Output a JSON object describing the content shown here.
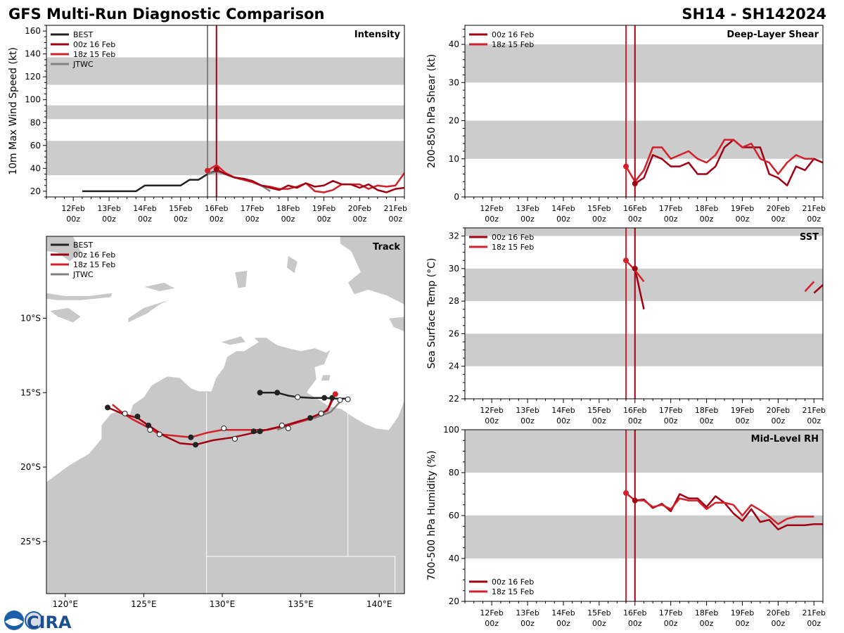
{
  "header": {
    "title_left": "GFS Multi-Run Diagnostic Comparison",
    "title_right": "SH14 - SH142024"
  },
  "time_ticks": [
    {
      "l1": "12Feb",
      "l2": "00z",
      "h": 0
    },
    {
      "l1": "13Feb",
      "l2": "00z",
      "h": 24
    },
    {
      "l1": "14Feb",
      "l2": "00z",
      "h": 48
    },
    {
      "l1": "15Feb",
      "l2": "00z",
      "h": 72
    },
    {
      "l1": "16Feb",
      "l2": "00z",
      "h": 96
    },
    {
      "l1": "17Feb",
      "l2": "00z",
      "h": 120
    },
    {
      "l1": "18Feb",
      "l2": "00z",
      "h": 144
    },
    {
      "l1": "19Feb",
      "l2": "00z",
      "h": 168
    },
    {
      "l1": "20Feb",
      "l2": "00z",
      "h": 192
    },
    {
      "l1": "21Feb",
      "l2": "00z",
      "h": 216
    }
  ],
  "colors": {
    "best": "#222222",
    "run00": "#a00012",
    "run18": "#d42028",
    "jtwc": "#808080",
    "band": "#cccccc",
    "land": "#c8c8c8"
  },
  "legend": {
    "best": "BEST",
    "run00": "00z 16 Feb",
    "run18": "18z 15 Feb",
    "jtwc": "JTWC"
  },
  "logo": {
    "text": "CIRA"
  },
  "chart_data": [
    {
      "id": "intensity",
      "type": "line",
      "title": "Intensity",
      "ylabel": "10m Max Wind Speed (kt)",
      "xlim_hours": [
        -18,
        222
      ],
      "ylim": [
        15,
        165
      ],
      "yticks": [
        20,
        40,
        60,
        80,
        100,
        120,
        140,
        160
      ],
      "yminor_step": 5,
      "bands": [
        [
          34,
          64
        ],
        [
          83,
          95
        ],
        [
          113,
          137
        ]
      ],
      "vlines": [
        {
          "hour": 90,
          "color": "jtwc"
        },
        {
          "hour": 96,
          "color": "run00"
        }
      ],
      "series": [
        {
          "name": "BEST",
          "color": "best",
          "x": [
            6,
            12,
            18,
            24,
            30,
            36,
            42,
            48,
            54,
            60,
            66,
            72,
            78,
            84,
            90,
            96
          ],
          "y": [
            20,
            20,
            20,
            20,
            20,
            20,
            20,
            25,
            25,
            25,
            25,
            25,
            30,
            30,
            35,
            38
          ]
        },
        {
          "name": "JTWC",
          "color": "jtwc",
          "x": [
            90,
            96,
            102,
            108,
            114,
            120,
            126,
            132
          ],
          "y": [
            35,
            37,
            35,
            32,
            30,
            28,
            25,
            20
          ]
        },
        {
          "name": "18z 15 Feb",
          "color": "run18",
          "x": [
            90,
            96,
            102,
            108,
            114,
            120,
            126,
            132,
            138,
            144,
            150,
            156,
            162,
            168,
            174,
            180,
            186,
            192,
            198,
            204,
            210,
            216,
            222
          ],
          "y": [
            38,
            43,
            36,
            32,
            30,
            28,
            25,
            24,
            22,
            22,
            24,
            27,
            20,
            19,
            21,
            26,
            26,
            26,
            22,
            25,
            24,
            25,
            36
          ]
        },
        {
          "name": "00z 16 Feb",
          "color": "run00",
          "x": [
            96,
            102,
            108,
            114,
            120,
            126,
            132,
            138,
            144,
            150,
            156,
            162,
            168,
            174,
            180,
            186,
            192,
            198,
            204,
            210,
            216,
            222
          ],
          "y": [
            39,
            35,
            32,
            31,
            29,
            25,
            23,
            21,
            25,
            23,
            27,
            24,
            25,
            29,
            26,
            26,
            23,
            26,
            21,
            19,
            22,
            23
          ]
        }
      ],
      "markers": [
        {
          "x": 90,
          "y": 38,
          "color": "run18"
        },
        {
          "x": 96,
          "y": 39,
          "color": "run00"
        }
      ]
    },
    {
      "id": "shear",
      "type": "line",
      "title": "Deep-Layer Shear",
      "ylabel": "200-850 hPa Shear (kt)",
      "xlim_hours": [
        -18,
        222
      ],
      "ylim": [
        0,
        45
      ],
      "yticks": [
        0,
        10,
        20,
        30,
        40
      ],
      "yminor_step": 2,
      "bands": [
        [
          10,
          20
        ],
        [
          30,
          40
        ]
      ],
      "vlines": [
        {
          "hour": 90,
          "color": "run18"
        },
        {
          "hour": 96,
          "color": "run00"
        }
      ],
      "series": [
        {
          "name": "00z 16 Feb",
          "color": "run00",
          "x": [
            96,
            102,
            108,
            114,
            120,
            126,
            132,
            138,
            144,
            150,
            156,
            162,
            168,
            174,
            180,
            186,
            192,
            198,
            204,
            210,
            216,
            222
          ],
          "y": [
            3.5,
            5,
            11,
            10,
            8,
            8,
            9,
            6,
            6,
            8,
            13,
            15,
            13,
            13,
            13,
            6,
            5,
            3,
            8,
            7,
            10,
            9
          ]
        },
        {
          "name": "18z 15 Feb",
          "color": "run18",
          "x": [
            90,
            96,
            102,
            108,
            114,
            120,
            126,
            132,
            138,
            144,
            150,
            156,
            162,
            168,
            174,
            180,
            186,
            192,
            198,
            204,
            210,
            216
          ],
          "y": [
            8,
            4,
            7,
            13,
            13,
            10,
            11,
            12,
            10,
            9,
            11,
            15,
            15,
            13,
            14,
            10,
            9,
            6,
            9,
            11,
            10,
            10
          ]
        }
      ],
      "markers": [
        {
          "x": 90,
          "y": 8,
          "color": "run18"
        },
        {
          "x": 96,
          "y": 3.5,
          "color": "run00"
        }
      ]
    },
    {
      "id": "sst",
      "type": "line",
      "title": "SST",
      "ylabel": "Sea Surface Temp (°C)",
      "xlim_hours": [
        -18,
        222
      ],
      "ylim": [
        22,
        32.5
      ],
      "yticks": [
        22,
        24,
        26,
        28,
        30,
        32
      ],
      "yminor_step": 0.5,
      "bands": [
        [
          24,
          26
        ],
        [
          28,
          30
        ],
        [
          32,
          34
        ]
      ],
      "vlines": [
        {
          "hour": 90,
          "color": "run18"
        },
        {
          "hour": 96,
          "color": "run00"
        }
      ],
      "series": [
        {
          "name": "00z 16 Feb",
          "color": "run00",
          "x": [
            96,
            102
          ],
          "y": [
            30,
            27.5
          ]
        },
        {
          "name": "00z 16 Feb (late)",
          "color": "run00",
          "x": [
            216,
            222
          ],
          "y": [
            28.5,
            29
          ]
        },
        {
          "name": "18z 15 Feb",
          "color": "run18",
          "x": [
            90,
            96,
            102
          ],
          "y": [
            30.5,
            29.9,
            29.2
          ]
        },
        {
          "name": "18z 15 Feb (late)",
          "color": "run18",
          "x": [
            210,
            216
          ],
          "y": [
            28.6,
            29.2
          ]
        }
      ],
      "markers": [
        {
          "x": 90,
          "y": 30.5,
          "color": "run18"
        },
        {
          "x": 96,
          "y": 30,
          "color": "run00"
        }
      ]
    },
    {
      "id": "rh",
      "type": "line",
      "title": "Mid-Level RH",
      "ylabel": "700-500 hPa Humidity (%)",
      "xlim_hours": [
        -18,
        222
      ],
      "ylim": [
        20,
        100
      ],
      "yticks": [
        20,
        40,
        60,
        80,
        100
      ],
      "yminor_step": 5,
      "bands": [
        [
          40,
          60
        ],
        [
          80,
          100
        ]
      ],
      "vlines": [
        {
          "hour": 90,
          "color": "run18"
        },
        {
          "hour": 96,
          "color": "run00"
        }
      ],
      "series": [
        {
          "name": "00z 16 Feb",
          "color": "run00",
          "x": [
            96,
            102,
            108,
            114,
            120,
            126,
            132,
            138,
            144,
            150,
            156,
            162,
            168,
            174,
            180,
            186,
            192,
            198,
            204,
            210,
            216,
            222
          ],
          "y": [
            67,
            67.5,
            63.5,
            65.5,
            62,
            70,
            68,
            68,
            64,
            69,
            66,
            61,
            57.5,
            63,
            57,
            58,
            53.5,
            55.5,
            55.5,
            55.5,
            56,
            56
          ]
        },
        {
          "name": "18z 15 Feb",
          "color": "run18",
          "x": [
            90,
            96,
            102,
            108,
            114,
            120,
            126,
            132,
            138,
            144,
            150,
            156,
            162,
            168,
            174,
            180,
            186,
            192,
            198,
            204,
            210,
            216
          ],
          "y": [
            70.5,
            67,
            67,
            64,
            65,
            63,
            68,
            67,
            67,
            63,
            66,
            66,
            65,
            60,
            65,
            62.5,
            59.5,
            56,
            58.5,
            59.5,
            59.5,
            59.5
          ]
        }
      ],
      "markers": [
        {
          "x": 90,
          "y": 70.5,
          "color": "run18"
        },
        {
          "x": 96,
          "y": 67,
          "color": "run00"
        }
      ]
    },
    {
      "id": "track",
      "type": "scatter",
      "title": "Track",
      "xlim": [
        118.8,
        141.6
      ],
      "ylim": [
        -28.5,
        -4.5
      ],
      "xticks": [
        {
          "v": 120,
          "l": "120°E"
        },
        {
          "v": 125,
          "l": "125°E"
        },
        {
          "v": 130,
          "l": "130°E"
        },
        {
          "v": 135,
          "l": "135°E"
        },
        {
          "v": 140,
          "l": "140°E"
        }
      ],
      "yticks": [
        {
          "v": -10,
          "l": "10°S"
        },
        {
          "v": -15,
          "l": "15°S"
        },
        {
          "v": -20,
          "l": "20°S"
        },
        {
          "v": -25,
          "l": "25°S"
        }
      ],
      "series": [
        {
          "name": "BEST",
          "color": "best",
          "lon": [
            132.4,
            133.5,
            134.2,
            134.8,
            135.7,
            136.5,
            137.3,
            138.0,
            138.0
          ],
          "lat": [
            -15.0,
            -15.0,
            -15.2,
            -15.3,
            -15.35,
            -15.35,
            -15.4,
            -15.4,
            -15.6
          ]
        },
        {
          "name": "JTWC",
          "color": "jtwc",
          "lon": [
            137.6,
            136.9,
            135.9,
            134.5,
            133.5
          ],
          "lat": [
            -15.5,
            -16.3,
            -16.7,
            -17.1,
            -17.5
          ]
        },
        {
          "name": "18z 15 Feb",
          "color": "run18",
          "lon": [
            137.2,
            136.8,
            136.5,
            135.4,
            134.2,
            132.9,
            131.3,
            130.0,
            129.0,
            128.0,
            127.0,
            126.0,
            125.2,
            124.3,
            123.7,
            123.0
          ],
          "lat": [
            -15.1,
            -16.0,
            -16.3,
            -16.8,
            -17.2,
            -17.5,
            -17.5,
            -17.5,
            -17.7,
            -18.0,
            -17.9,
            -17.8,
            -17.3,
            -16.8,
            -16.4,
            -15.8
          ]
        },
        {
          "name": "00z 16 Feb",
          "color": "run00",
          "lon": [
            137.0,
            136.7,
            135.6,
            134.0,
            132.4,
            130.7,
            129.4,
            128.3,
            127.3,
            126.3,
            125.3,
            124.6,
            123.6,
            122.7
          ],
          "lat": [
            -15.4,
            -16.2,
            -16.7,
            -17.2,
            -17.6,
            -18.0,
            -18.2,
            -18.5,
            -18.4,
            -17.9,
            -17.2,
            -16.7,
            -16.4,
            -16.0
          ]
        }
      ],
      "points_filled": [
        {
          "lon": 132.4,
          "lat": -15.0,
          "c": "best"
        },
        {
          "lon": 133.5,
          "lat": -15.0,
          "c": "best"
        },
        {
          "lon": 136.5,
          "lat": -15.35,
          "c": "best"
        },
        {
          "lon": 137.0,
          "lat": -15.35,
          "c": "best"
        },
        {
          "lon": 137.2,
          "lat": -15.1,
          "c": "run18"
        },
        {
          "lon": 135.6,
          "lat": -16.7,
          "c": "best"
        },
        {
          "lon": 132.0,
          "lat": -17.6,
          "c": "best"
        },
        {
          "lon": 128.3,
          "lat": -18.5,
          "c": "best"
        },
        {
          "lon": 128.0,
          "lat": -18.0,
          "c": "best"
        },
        {
          "lon": 125.3,
          "lat": -17.2,
          "c": "best"
        },
        {
          "lon": 124.6,
          "lat": -16.6,
          "c": "best"
        },
        {
          "lon": 122.7,
          "lat": -16.0,
          "c": "best"
        },
        {
          "lon": 132.4,
          "lat": -17.6,
          "c": "best"
        }
      ],
      "points_open": [
        {
          "lon": 134.8,
          "lat": -15.3
        },
        {
          "lon": 138.0,
          "lat": -15.45
        },
        {
          "lon": 136.3,
          "lat": -16.4
        },
        {
          "lon": 133.8,
          "lat": -17.2
        },
        {
          "lon": 130.1,
          "lat": -17.4
        },
        {
          "lon": 134.2,
          "lat": -17.4
        },
        {
          "lon": 130.8,
          "lat": -18.1
        },
        {
          "lon": 126.0,
          "lat": -17.8
        },
        {
          "lon": 125.4,
          "lat": -17.5
        },
        {
          "lon": 123.8,
          "lat": -16.4
        },
        {
          "lon": 137.5,
          "lat": -15.5
        }
      ]
    }
  ]
}
